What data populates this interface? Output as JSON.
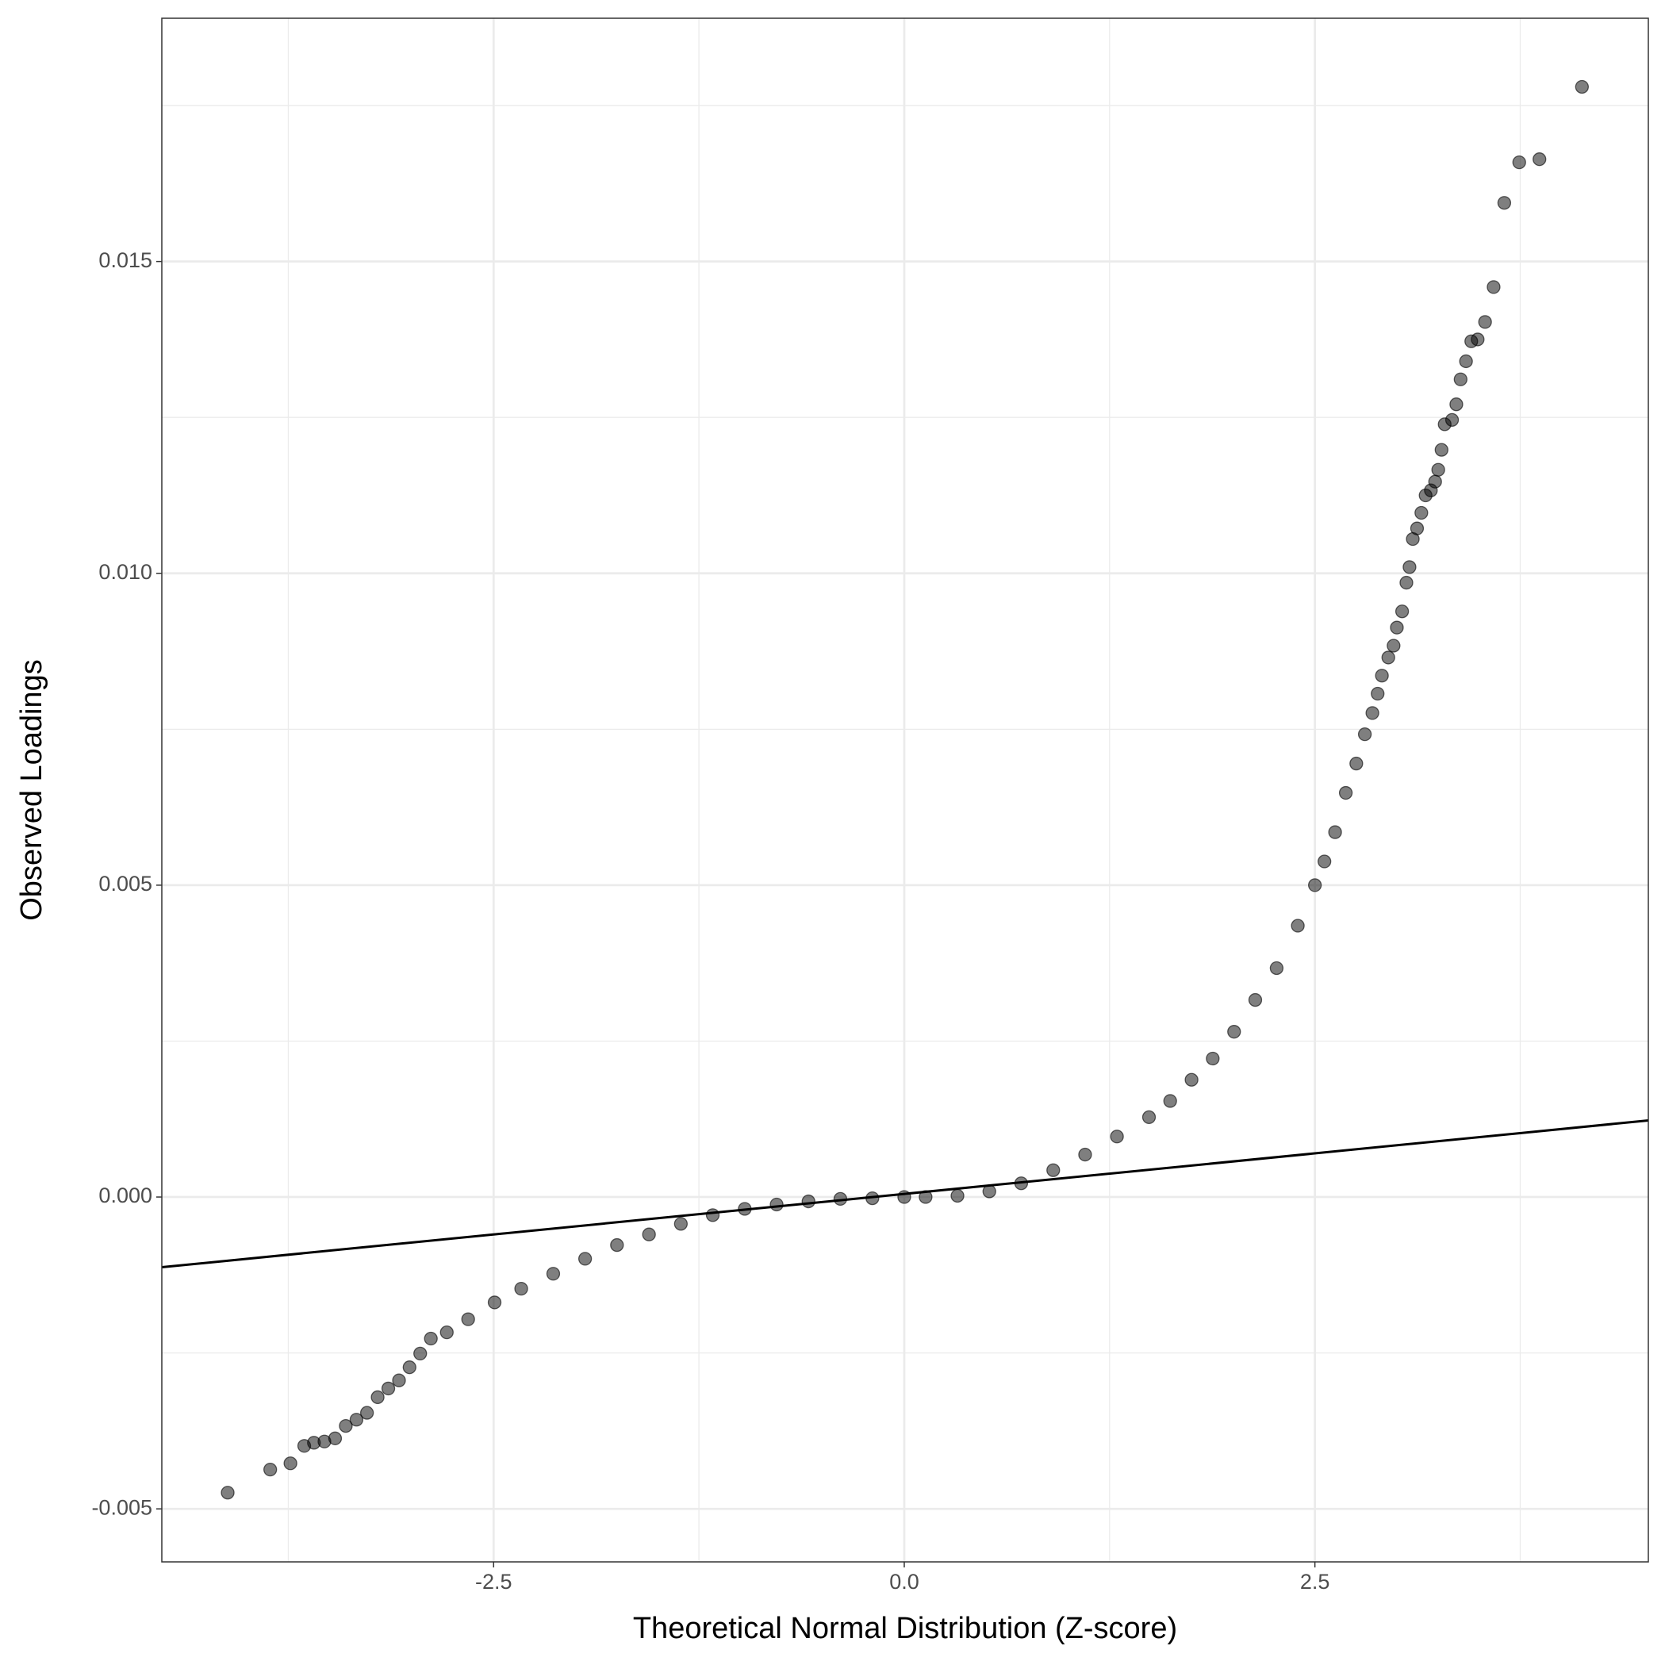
{
  "chart_data": {
    "type": "scatter",
    "x_label": "Theoretical Normal Distribution (Z-score)",
    "y_label": "Observed Loadings",
    "x": [
      -4.119,
      -3.86,
      -3.737,
      -3.653,
      -3.594,
      -3.53,
      -3.465,
      -3.4,
      -3.335,
      -3.271,
      -3.206,
      -3.141,
      -3.076,
      -3.012,
      -2.947,
      -2.882,
      -2.785,
      -2.655,
      -2.494,
      -2.332,
      -2.137,
      -1.943,
      -1.749,
      -1.554,
      -1.36,
      -1.166,
      -0.971,
      -0.777,
      -0.583,
      -0.389,
      -0.194,
      0,
      0.13,
      0.324,
      0.518,
      0.712,
      0.907,
      1.101,
      1.295,
      1.49,
      1.619,
      1.749,
      1.878,
      2.008,
      2.137,
      2.267,
      2.396,
      2.5,
      2.558,
      2.623,
      2.688,
      2.752,
      2.804,
      2.85,
      2.882,
      2.908,
      2.947,
      2.979,
      2.999,
      3.031,
      3.057,
      3.076,
      3.096,
      3.122,
      3.148,
      3.174,
      3.206,
      3.232,
      3.251,
      3.271,
      3.29,
      3.335,
      3.361,
      3.387,
      3.42,
      3.452,
      3.491,
      3.536,
      3.588,
      3.653,
      3.744,
      3.867,
      4.126
    ],
    "series": [
      {
        "color": "#000000",
        "values": [
          -0.00474,
          -0.00437,
          -0.00427,
          -0.00399,
          -0.00394,
          -0.00392,
          -0.00387,
          -0.00367,
          -0.00357,
          -0.00346,
          -0.00321,
          -0.00307,
          -0.00294,
          -0.00273,
          -0.00251,
          -0.00227,
          -0.00217,
          -0.00196,
          -0.00169,
          -0.00147,
          -0.00123,
          -0.00099,
          -0.00077,
          -0.0006,
          -0.00043,
          -0.00029,
          -0.00019,
          -0.00012,
          -7e-05,
          -3e-05,
          -2e-05,
          0,
          0,
          2e-05,
          9e-05,
          0.00022,
          0.00043,
          0.00068,
          0.00097,
          0.00128,
          0.00154,
          0.00188,
          0.00222,
          0.00265,
          0.00316,
          0.00367,
          0.00435,
          0.005,
          0.00538,
          0.00585,
          0.00648,
          0.00695,
          0.00742,
          0.00776,
          0.00807,
          0.00836,
          0.00865,
          0.00884,
          0.00913,
          0.00939,
          0.00985,
          0.0101,
          0.01055,
          0.01072,
          0.01097,
          0.01125,
          0.01133,
          0.01147,
          0.01166,
          0.01198,
          0.01239,
          0.01246,
          0.01271,
          0.01311,
          0.0134,
          0.01372,
          0.01375,
          0.01403,
          0.01459,
          0.01594,
          0.01659,
          0.01664,
          0.0178
        ]
      }
    ],
    "reference_line": {
      "slope": 0.00026,
      "intercept": 5e-05,
      "color": "#000000"
    },
    "xlim": [
      -4.52,
      4.53
    ],
    "ylim": [
      -0.00585,
      0.0189
    ],
    "xticks": [
      -2.5,
      {
        "value": 0,
        "label": "0.0"
      },
      2.5
    ],
    "yticks": [
      -0.005,
      {
        "value": 0,
        "label": "0.000"
      },
      0.005,
      {
        "value": 0.01,
        "label": "0.010"
      },
      0.015
    ],
    "x_minor_ticks": [
      -3.75,
      -1.25,
      1.25,
      3.75
    ],
    "y_minor_ticks": [
      -0.0025,
      0.0025,
      0.0075,
      0.0125,
      0.0175
    ],
    "grid": true
  }
}
